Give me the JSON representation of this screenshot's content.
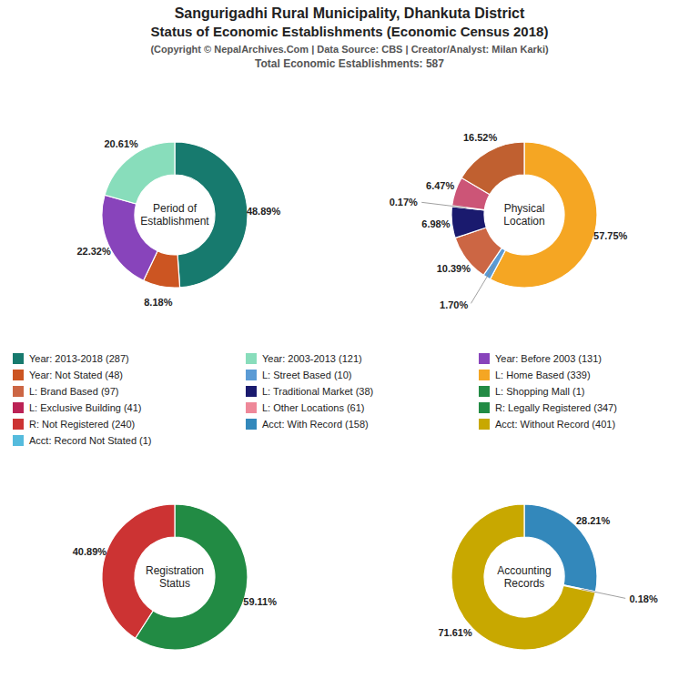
{
  "title": "Sangurigadhi Rural Municipality, Dhankuta District",
  "subtitle": "Status of Economic Establishments (Economic Census 2018)",
  "annotations": [
    "(Copyright © NepalArchives.Com | Data Source: CBS | Creator/Analyst: Milan Karki)",
    "Total Economic Establishments: 587"
  ],
  "series": [
    {
      "name": "Year: 2013-2018 (287)",
      "color": "#177A6E"
    },
    {
      "name": "Year: 2003-2013 (121)",
      "color": "#88DDBB"
    },
    {
      "name": "Year: Before 2003 (131)",
      "color": "#8844BB"
    },
    {
      "name": "Year: Not Stated (48)",
      "color": "#CC5522"
    },
    {
      "name": "L: Street Based (10)",
      "color": "#5B9BD5"
    },
    {
      "name": "L: Home Based (339)",
      "color": "#F5A623"
    },
    {
      "name": "L: Brand Based (97)",
      "color": "#CC6644"
    },
    {
      "name": "L: Traditional Market (38)",
      "color": "#1A1A6E"
    },
    {
      "name": "L: Shopping Mall (1)",
      "color": "#228B44"
    },
    {
      "name": "L: Exclusive Building (41)",
      "color": "#BB2255"
    },
    {
      "name": "L: Other Locations (61)",
      "color": "#EE8899"
    },
    {
      "name": "R: Legally Registered (347)",
      "color": "#228B44"
    },
    {
      "name": "R: Not Registered (240)",
      "color": "#CC3333"
    },
    {
      "name": "Acct: With Record (158)",
      "color": "#3388BB"
    },
    {
      "name": "Acct: Without Record (401)",
      "color": "#C8A800"
    },
    {
      "name": "Acct: Record Not Stated (1)",
      "color": "#55BBDD"
    }
  ],
  "chart_data": [
    {
      "type": "pie",
      "title": "Period of\nEstablishment",
      "values": [
        48.89,
        8.18,
        22.32,
        20.61
      ],
      "value_labels": [
        "48.89%",
        "8.18%",
        "22.32%",
        "20.61%"
      ],
      "colors": [
        "#177A6E",
        "#CC5522",
        "#8844BB",
        "#88DDBB"
      ],
      "data_labels": true
    },
    {
      "type": "pie",
      "title": "Physical\nLocation",
      "values": [
        57.75,
        1.7,
        10.39,
        6.98,
        0.17,
        6.47,
        16.52
      ],
      "value_labels": [
        "57.75%",
        "1.70%",
        "10.39%",
        "6.98%",
        "0.17%",
        "6.47%",
        "16.52%"
      ],
      "colors": [
        "#F5A623",
        "#5B9BD5",
        "#CC6644",
        "#1A1A6E",
        "#B0B0B0",
        "#CC5577",
        "#C06030"
      ],
      "data_labels": true
    },
    {
      "type": "pie",
      "title": "Registration\nStatus",
      "values": [
        59.11,
        40.89
      ],
      "value_labels": [
        "59.11%",
        "40.89%"
      ],
      "colors": [
        "#228B44",
        "#CC3333"
      ],
      "data_labels": true
    },
    {
      "type": "pie",
      "title": "Accounting\nRecords",
      "values": [
        28.21,
        0.18,
        71.61
      ],
      "value_labels": [
        "28.21%",
        "0.18%",
        "71.61%"
      ],
      "colors": [
        "#3388BB",
        "#55BBDD",
        "#C8A800"
      ],
      "data_labels": true
    }
  ]
}
